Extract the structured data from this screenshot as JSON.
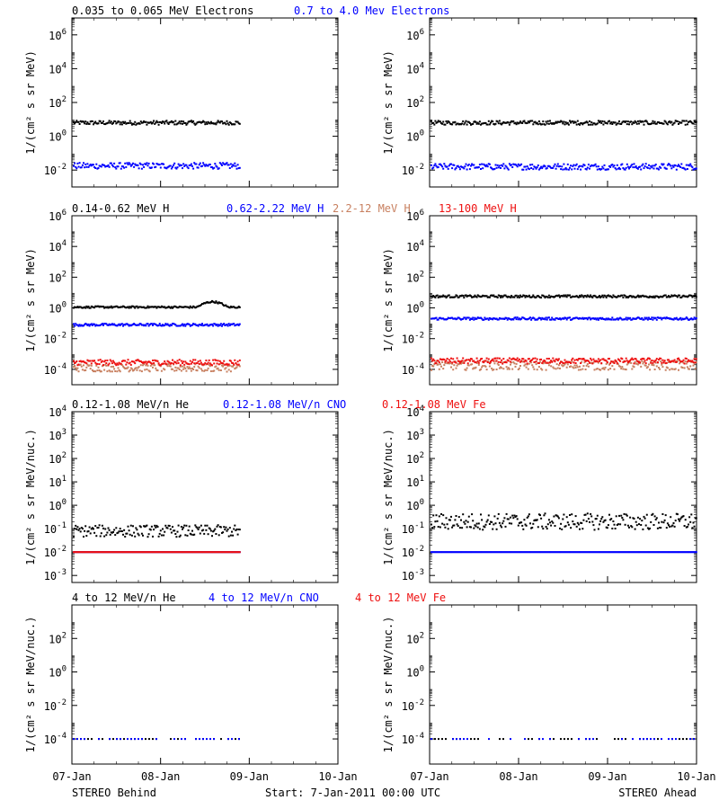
{
  "footer": {
    "left_caption": "STEREO Behind",
    "center_caption": "Start:  7-Jan-2011 00:00 UTC",
    "right_caption": "STEREO Ahead"
  },
  "x_tick_labels": [
    "07-Jan",
    "08-Jan",
    "09-Jan",
    "10-Jan"
  ],
  "colors": {
    "black": "#000000",
    "blue": "#0000ff",
    "tan": "#c88060",
    "red": "#ee1010"
  },
  "chart_data": [
    {
      "type": "scatter",
      "row": 1,
      "legend": [
        {
          "label": "0.035 to 0.065 MeV Electrons",
          "color": "black"
        },
        {
          "label": "0.7 to 4.0 Mev Electrons",
          "color": "blue"
        }
      ],
      "ylabel": "1/(cm² s sr MeV)",
      "yscale": "log",
      "ylim_exp": [
        -3,
        7
      ],
      "yticks": [
        {
          "base": "10",
          "exp": "-2"
        },
        {
          "base": "10",
          "exp": "0"
        },
        {
          "base": "10",
          "exp": "2"
        },
        {
          "base": "10",
          "exp": "4"
        },
        {
          "base": "10",
          "exp": "6"
        }
      ],
      "xlim_days": [
        0,
        3
      ],
      "panels": {
        "behind": [
          {
            "color": "black",
            "logy": 0.8,
            "x_end": 1.9,
            "scatter": 0.12
          },
          {
            "color": "blue",
            "logy": -1.75,
            "x_end": 1.9,
            "scatter": 0.18
          }
        ],
        "ahead": [
          {
            "color": "black",
            "logy": 0.8,
            "x_end": 3.0,
            "scatter": 0.12
          },
          {
            "color": "blue",
            "logy": -1.8,
            "x_end": 3.0,
            "scatter": 0.18
          }
        ]
      }
    },
    {
      "type": "scatter",
      "row": 2,
      "legend": [
        {
          "label": "0.14-0.62 MeV H",
          "color": "black"
        },
        {
          "label": "0.62-2.22 MeV H",
          "color": "blue"
        },
        {
          "label": "2.2-12 MeV H",
          "color": "tan"
        },
        {
          "label": "13-100 MeV H",
          "color": "red"
        }
      ],
      "ylabel": "1/(cm² s sr MeV)",
      "yscale": "log",
      "ylim_exp": [
        -5,
        6
      ],
      "yticks": [
        {
          "base": "10",
          "exp": "-4"
        },
        {
          "base": "10",
          "exp": "-2"
        },
        {
          "base": "10",
          "exp": "0"
        },
        {
          "base": "10",
          "exp": "2"
        },
        {
          "base": "10",
          "exp": "4"
        },
        {
          "base": "10",
          "exp": "6"
        }
      ],
      "xlim_days": [
        0,
        3
      ],
      "panels": {
        "behind": [
          {
            "color": "black",
            "logy": 0.05,
            "x_end": 1.9,
            "scatter": 0.06
          },
          {
            "color": "blue",
            "logy": -1.1,
            "x_end": 1.9,
            "scatter": 0.08
          },
          {
            "color": "tan",
            "logy": -3.9,
            "x_end": 1.9,
            "scatter": 0.25
          },
          {
            "color": "red",
            "logy": -3.55,
            "x_end": 1.9,
            "scatter": 0.18
          }
        ],
        "ahead": [
          {
            "color": "black",
            "logy": 0.75,
            "x_end": 3.0,
            "scatter": 0.08
          },
          {
            "color": "blue",
            "logy": -0.7,
            "x_end": 3.0,
            "scatter": 0.08
          },
          {
            "color": "tan",
            "logy": -3.75,
            "x_end": 3.0,
            "scatter": 0.3
          },
          {
            "color": "red",
            "logy": -3.45,
            "x_end": 3.0,
            "scatter": 0.18
          }
        ]
      }
    },
    {
      "type": "scatter",
      "row": 3,
      "legend": [
        {
          "label": "0.12-1.08 MeV/n He",
          "color": "black"
        },
        {
          "label": "0.12-1.08 MeV/n CNO",
          "color": "blue"
        },
        {
          "label": "0.12-1.08 MeV Fe",
          "color": "red"
        }
      ],
      "ylabel": "1/(cm² s sr MeV/nuc.)",
      "yscale": "log",
      "ylim_exp": [
        -3.3,
        4
      ],
      "yticks": [
        {
          "base": "10",
          "exp": "-3"
        },
        {
          "base": "10",
          "exp": "-2"
        },
        {
          "base": "10",
          "exp": "-1"
        },
        {
          "base": "10",
          "exp": "0"
        },
        {
          "base": "10",
          "exp": "1"
        },
        {
          "base": "10",
          "exp": "2"
        },
        {
          "base": "10",
          "exp": "3"
        },
        {
          "base": "10",
          "exp": "4"
        }
      ],
      "xlim_days": [
        0,
        3
      ],
      "panels": {
        "behind": [
          {
            "color": "black",
            "logy": -1.1,
            "x_end": 1.9,
            "scatter": 0.25
          },
          {
            "color": "blue",
            "logy": -2.0,
            "x_end": 1.9,
            "scatter": 0.0
          },
          {
            "color": "red",
            "logy": -2.0,
            "x_end": 1.9,
            "scatter": 0.0
          }
        ],
        "ahead": [
          {
            "color": "black",
            "logy": -0.7,
            "x_end": 3.0,
            "scatter": 0.35
          },
          {
            "color": "blue",
            "logy": -2.0,
            "x_end": 3.0,
            "scatter": 0.0
          }
        ]
      }
    },
    {
      "type": "scatter",
      "row": 4,
      "legend": [
        {
          "label": "4 to 12 MeV/n He",
          "color": "black"
        },
        {
          "label": "4 to 12 MeV/n CNO",
          "color": "blue"
        },
        {
          "label": "4 to 12 MeV Fe",
          "color": "red"
        }
      ],
      "ylabel": "1/(cm² s sr MeV/nuc.)",
      "yscale": "log",
      "ylim_exp": [
        -5.5,
        4
      ],
      "yticks": [
        {
          "base": "10",
          "exp": "-4"
        },
        {
          "base": "10",
          "exp": "-2"
        },
        {
          "base": "10",
          "exp": "0"
        },
        {
          "base": "10",
          "exp": "2"
        }
      ],
      "xlim_days": [
        0,
        3
      ],
      "panels": {
        "behind": [
          {
            "color": "black",
            "logy": -4.0,
            "x_end": 1.9,
            "scatter": 0.0,
            "sparse": true
          },
          {
            "color": "blue",
            "logy": -4.0,
            "x_end": 1.9,
            "scatter": 0.0,
            "sparse": true
          }
        ],
        "ahead": [
          {
            "color": "black",
            "logy": -4.0,
            "x_end": 3.0,
            "scatter": 0.0,
            "sparse": true
          },
          {
            "color": "blue",
            "logy": -4.0,
            "x_end": 3.0,
            "scatter": 0.0,
            "sparse": true
          }
        ]
      }
    }
  ]
}
